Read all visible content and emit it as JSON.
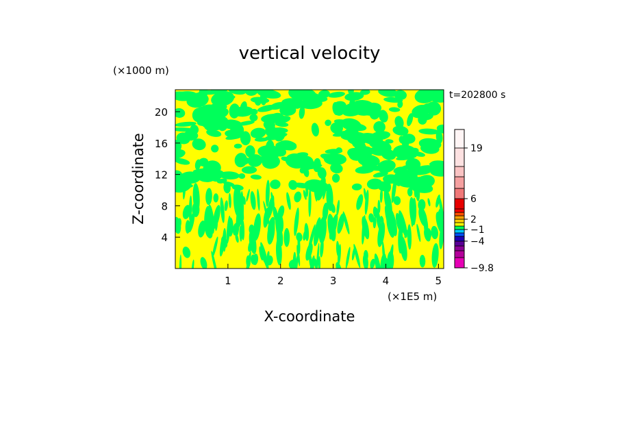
{
  "chart_data": {
    "type": "heatmap",
    "title": "vertical velocity",
    "xlabel": "X-coordinate",
    "ylabel": "Z-coordinate",
    "x_unit": "(×1E5 m)",
    "y_unit": "(×1000 m)",
    "time_label": "t=202800 s",
    "xlim": [
      0,
      5.1
    ],
    "ylim": [
      0,
      22.8
    ],
    "x_ticks": [
      1,
      2,
      3,
      4,
      5
    ],
    "y_ticks": [
      4,
      8,
      12,
      16,
      20
    ],
    "fill_colors": {
      "negative": "#00ff5a",
      "positive": "#ffff00"
    },
    "colorbar": {
      "levels": [
        -9.8,
        -8,
        -6.5,
        -5,
        -4,
        -3,
        -2,
        -1,
        0,
        1,
        2,
        3,
        4,
        5,
        6,
        8,
        11,
        15,
        19,
        23
      ],
      "colors": [
        "#e600b4",
        "#b4009a",
        "#8c0096",
        "#5a0096",
        "#1e00b4",
        "#0050ff",
        "#00c8ff",
        "#00ff5a",
        "#ffff00",
        "#ffd200",
        "#ffa000",
        "#ff5000",
        "#ff0000",
        "#e60000",
        "#f07878",
        "#f5a0a0",
        "#fac3c3",
        "#fde1e1",
        "#fff5f5"
      ],
      "labels": [
        {
          "text": "19",
          "level": 19
        },
        {
          "text": "6",
          "level": 6
        },
        {
          "text": "2",
          "level": 2
        },
        {
          "text": "−1",
          "level": -1
        },
        {
          "text": "−4",
          "level": -4
        },
        {
          "text": "−9.8",
          "level": -9.8
        }
      ]
    }
  }
}
